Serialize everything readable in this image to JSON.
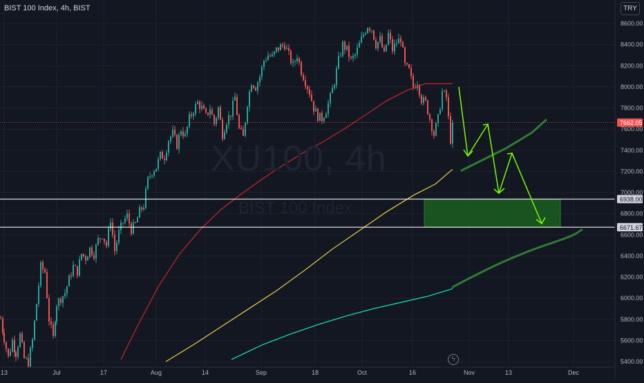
{
  "header": {
    "title": "BIST 100 Index, 4h, BIST",
    "currency_button": "TRY",
    "watermark_symbol": "XU100, 4h",
    "watermark_name": "BIST 100 Index"
  },
  "icons": {
    "replay": "lightning-icon"
  },
  "colors": {
    "background": "#131722",
    "up": "#26a69a",
    "down": "#ef5350",
    "ma_red": "#c62828",
    "ma_yellow": "#e6d34a",
    "ma_teal": "#1de9b6",
    "drawing_green": "#2e7d32",
    "arrow_green": "#76ff03",
    "level_line": "#ffffff",
    "price_label": "#ef5350"
  },
  "chart_data": {
    "type": "candlestick",
    "title": "BIST 100 Index, 4h, BIST",
    "y_ticks": [
      5400,
      5600,
      5800,
      6000,
      6200,
      6400,
      6600,
      6800,
      7000,
      7200,
      7400,
      7600,
      7800,
      8000,
      8200,
      8400,
      8600
    ],
    "y_tick_labels": [
      "5400.00",
      "5600.00",
      "5800.00",
      "6000.00",
      "6200.00",
      "6400.00",
      "6600.00",
      "6800.00",
      "7000.00",
      "7200.00",
      "7400.00",
      "7600.00",
      "7800.00",
      "8000.00",
      "8200.00",
      "8400.00",
      "8600.00"
    ],
    "ylim": [
      5355,
      8740
    ],
    "x_ticks": [
      "13",
      "Jul",
      "17",
      "Aug",
      "14",
      "Sep",
      "18",
      "Oct",
      "16",
      "Nov",
      "13",
      "Dec"
    ],
    "last_price": {
      "value": 7662.05,
      "label": "7662.05"
    },
    "levels": [
      {
        "value": 6938.0,
        "label": "6938.00"
      },
      {
        "value": 6671.67,
        "label": "6671.67"
      }
    ],
    "price_path": [
      [
        0,
        5810
      ],
      [
        5,
        5620
      ],
      [
        11,
        5440
      ],
      [
        17,
        5600
      ],
      [
        22,
        5480
      ],
      [
        28,
        5650
      ],
      [
        34,
        5430
      ],
      [
        40,
        5390
      ],
      [
        46,
        5600
      ],
      [
        52,
        5950
      ],
      [
        58,
        6300
      ],
      [
        64,
        6250
      ],
      [
        70,
        5800
      ],
      [
        76,
        5620
      ],
      [
        81,
        5950
      ],
      [
        87,
        6000
      ],
      [
        93,
        6050
      ],
      [
        99,
        6180
      ],
      [
        105,
        6300
      ],
      [
        111,
        6250
      ],
      [
        117,
        6420
      ],
      [
        123,
        6380
      ],
      [
        129,
        6470
      ],
      [
        135,
        6420
      ],
      [
        141,
        6550
      ],
      [
        147,
        6600
      ],
      [
        153,
        6500
      ],
      [
        159,
        6750
      ],
      [
        165,
        6450
      ],
      [
        171,
        6620
      ],
      [
        177,
        6720
      ],
      [
        183,
        6780
      ],
      [
        189,
        6650
      ],
      [
        195,
        6700
      ],
      [
        201,
        6820
      ],
      [
        207,
        6880
      ],
      [
        213,
        7120
      ],
      [
        219,
        7200
      ],
      [
        225,
        7240
      ],
      [
        231,
        7350
      ],
      [
        237,
        7340
      ],
      [
        243,
        7500
      ],
      [
        249,
        7560
      ],
      [
        255,
        7450
      ],
      [
        261,
        7600
      ],
      [
        267,
        7530
      ],
      [
        273,
        7700
      ],
      [
        279,
        7780
      ],
      [
        285,
        7850
      ],
      [
        291,
        7800
      ],
      [
        297,
        7720
      ],
      [
        303,
        7800
      ],
      [
        309,
        7650
      ],
      [
        315,
        7800
      ],
      [
        321,
        7550
      ],
      [
        327,
        7680
      ],
      [
        333,
        7750
      ],
      [
        339,
        7900
      ],
      [
        345,
        7600
      ],
      [
        351,
        7520
      ],
      [
        357,
        7850
      ],
      [
        363,
        8050
      ],
      [
        369,
        8000
      ],
      [
        375,
        8100
      ],
      [
        381,
        8250
      ],
      [
        387,
        8300
      ],
      [
        393,
        8280
      ],
      [
        399,
        8350
      ],
      [
        405,
        8380
      ],
      [
        411,
        8400
      ],
      [
        417,
        8300
      ],
      [
        423,
        8200
      ],
      [
        429,
        8300
      ],
      [
        435,
        8150
      ],
      [
        441,
        8050
      ],
      [
        447,
        7950
      ],
      [
        453,
        7800
      ],
      [
        459,
        7720
      ],
      [
        465,
        7700
      ],
      [
        471,
        7780
      ],
      [
        477,
        7900
      ],
      [
        483,
        8050
      ],
      [
        489,
        8250
      ],
      [
        495,
        8400
      ],
      [
        501,
        8350
      ],
      [
        507,
        8250
      ],
      [
        513,
        8300
      ],
      [
        519,
        8400
      ],
      [
        525,
        8500
      ],
      [
        531,
        8580
      ],
      [
        537,
        8550
      ],
      [
        543,
        8400
      ],
      [
        549,
        8450
      ],
      [
        555,
        8300
      ],
      [
        561,
        8500
      ],
      [
        567,
        8350
      ],
      [
        573,
        8420
      ],
      [
        579,
        8460
      ],
      [
        585,
        8200
      ],
      [
        591,
        8150
      ],
      [
        597,
        8000
      ],
      [
        603,
        8050
      ],
      [
        609,
        7880
      ],
      [
        615,
        7850
      ],
      [
        621,
        7700
      ],
      [
        627,
        7550
      ],
      [
        633,
        7700
      ],
      [
        639,
        7950
      ],
      [
        645,
        7900
      ],
      [
        651,
        7500
      ],
      [
        655,
        7662
      ]
    ],
    "moving_averages": [
      {
        "color": "red",
        "points": [
          [
            175,
            5420
          ],
          [
            200,
            5750
          ],
          [
            230,
            6120
          ],
          [
            260,
            6420
          ],
          [
            290,
            6650
          ],
          [
            320,
            6840
          ],
          [
            350,
            6990
          ],
          [
            380,
            7130
          ],
          [
            410,
            7260
          ],
          [
            440,
            7380
          ],
          [
            470,
            7490
          ],
          [
            500,
            7610
          ],
          [
            530,
            7740
          ],
          [
            560,
            7870
          ],
          [
            590,
            7970
          ],
          [
            615,
            8030
          ],
          [
            655,
            8030
          ]
        ]
      },
      {
        "color": "yellow",
        "points": [
          [
            240,
            5400
          ],
          [
            280,
            5560
          ],
          [
            320,
            5730
          ],
          [
            360,
            5900
          ],
          [
            400,
            6070
          ],
          [
            440,
            6260
          ],
          [
            480,
            6460
          ],
          [
            520,
            6640
          ],
          [
            560,
            6820
          ],
          [
            600,
            6980
          ],
          [
            630,
            7080
          ],
          [
            655,
            7220
          ]
        ]
      },
      {
        "color": "teal",
        "points": [
          [
            335,
            5420
          ],
          [
            380,
            5560
          ],
          [
            420,
            5660
          ],
          [
            460,
            5750
          ],
          [
            500,
            5830
          ],
          [
            540,
            5900
          ],
          [
            580,
            5960
          ],
          [
            620,
            6020
          ],
          [
            655,
            6090
          ]
        ]
      }
    ]
  }
}
